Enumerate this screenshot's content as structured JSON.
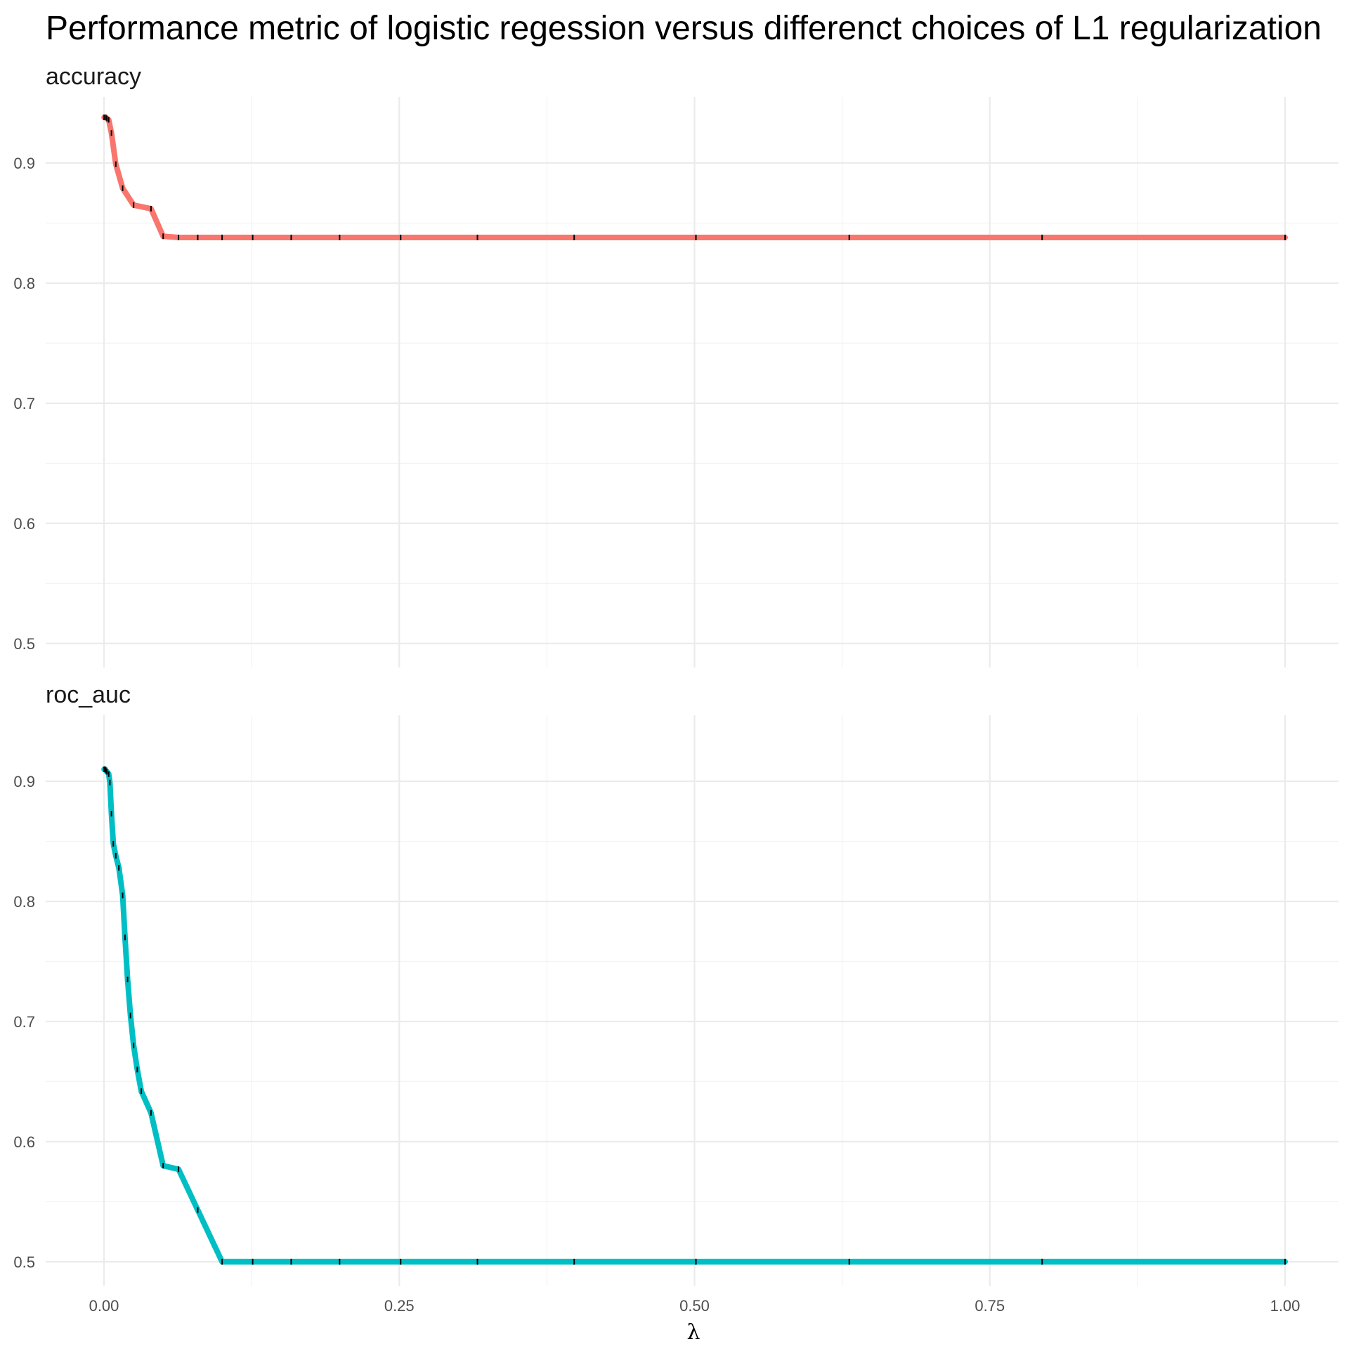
{
  "chart_data": {
    "type": "line",
    "title": "Performance metric of logistic regession versus differenct choices of L1 regularization",
    "xlabel": "λ",
    "ylabel": "",
    "xlim": [
      0,
      1
    ],
    "ylim": [
      0.48,
      0.955
    ],
    "x_ticks": [
      {
        "value": 0,
        "label": "0.00"
      },
      {
        "value": 0.25,
        "label": "0.25"
      },
      {
        "value": 0.5,
        "label": "0.50"
      },
      {
        "value": 0.75,
        "label": "0.75"
      },
      {
        "value": 1,
        "label": "1.00"
      }
    ],
    "y_ticks": [
      {
        "value": 0.5,
        "label": "0.5"
      },
      {
        "value": 0.6,
        "label": "0.6"
      },
      {
        "value": 0.7,
        "label": "0.7"
      },
      {
        "value": 0.8,
        "label": "0.8"
      },
      {
        "value": 0.9,
        "label": "0.9"
      }
    ],
    "grid": true,
    "legend": "none",
    "panels": [
      {
        "name": "accuracy",
        "color": "#F8766D",
        "x": [
          0.0001,
          0.0016,
          0.0025,
          0.004,
          0.0063,
          0.01,
          0.0158,
          0.0251,
          0.0398,
          0.0501,
          0.0631,
          0.0794,
          0.1,
          0.1259,
          0.1585,
          0.1995,
          0.2512,
          0.3162,
          0.3981,
          0.5012,
          0.631,
          0.7943,
          1.0
        ],
        "y": [
          0.938,
          0.938,
          0.937,
          0.936,
          0.925,
          0.899,
          0.879,
          0.865,
          0.862,
          0.839,
          0.838,
          0.838,
          0.838,
          0.838,
          0.838,
          0.838,
          0.838,
          0.838,
          0.838,
          0.838,
          0.838,
          0.838,
          0.838
        ]
      },
      {
        "name": "roc_auc",
        "color": "#00BFC4",
        "x": [
          0.0001,
          0.0005,
          0.001,
          0.0016,
          0.0025,
          0.004,
          0.005,
          0.0063,
          0.0079,
          0.01,
          0.0126,
          0.0158,
          0.0178,
          0.02,
          0.0224,
          0.0251,
          0.0282,
          0.0316,
          0.0398,
          0.0501,
          0.0631,
          0.0794,
          0.1,
          0.1259,
          0.1585,
          0.1995,
          0.2512,
          0.3162,
          0.3981,
          0.5012,
          0.631,
          0.7943,
          1.0
        ],
        "y": [
          0.91,
          0.91,
          0.91,
          0.909,
          0.908,
          0.906,
          0.899,
          0.873,
          0.848,
          0.838,
          0.828,
          0.805,
          0.77,
          0.735,
          0.705,
          0.68,
          0.66,
          0.642,
          0.624,
          0.58,
          0.577,
          0.543,
          0.5,
          0.5,
          0.5,
          0.5,
          0.5,
          0.5,
          0.5,
          0.5,
          0.5,
          0.5,
          0.5
        ]
      }
    ]
  }
}
